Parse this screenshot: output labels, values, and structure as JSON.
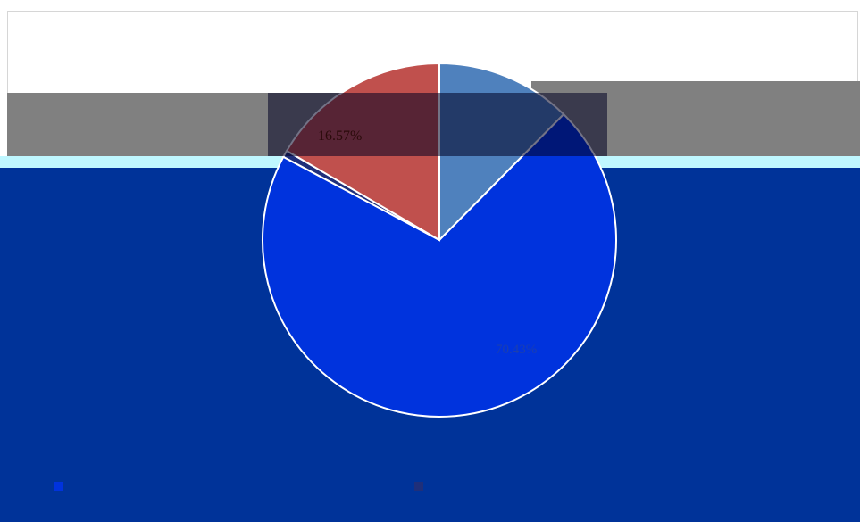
{
  "chart_data": {
    "type": "pie",
    "title": "",
    "slices": [
      {
        "label": "",
        "value": 12.4,
        "color": "#4f81bd"
      },
      {
        "label": "",
        "value": 70.4,
        "color": "#0033dd"
      },
      {
        "label": "",
        "value": 0.63,
        "color": "#1f2f7a"
      },
      {
        "label": "",
        "value": 16.57,
        "color": "#c0504d"
      }
    ],
    "data_labels": [
      {
        "text": "16.57%",
        "slice": 3
      },
      {
        "text": "70.43%",
        "slice": 1
      }
    ],
    "legend": {
      "placement": "bottom",
      "entries": [
        {
          "label": "",
          "color": "#0033dd"
        },
        {
          "label": "",
          "color": "#1f2f7a"
        }
      ]
    }
  }
}
